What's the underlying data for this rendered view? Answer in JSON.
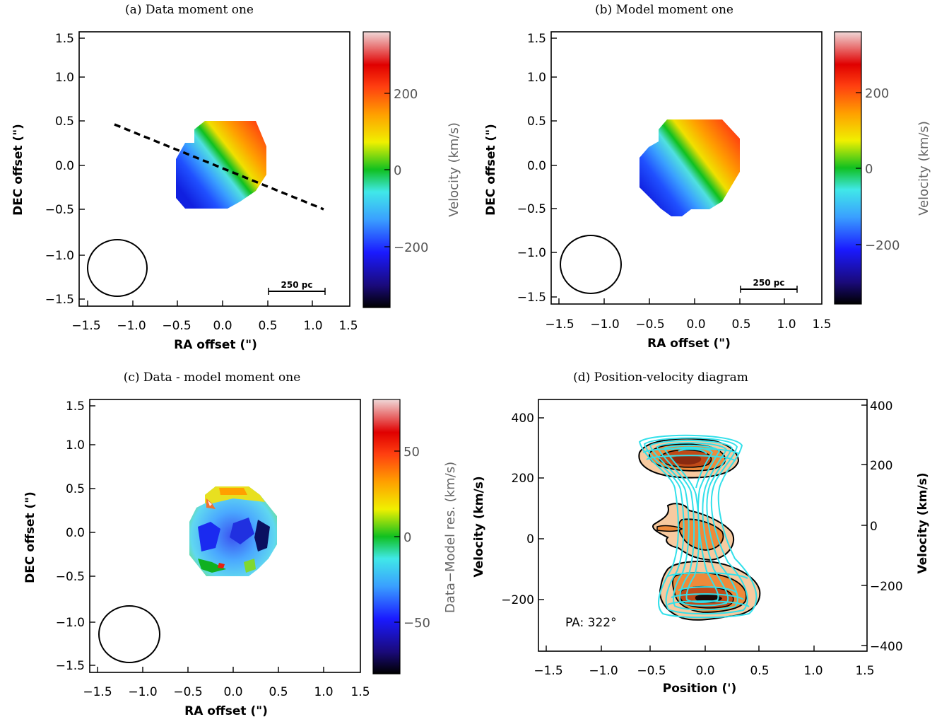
{
  "figure": {
    "panels": [
      {
        "id": "a",
        "title": "(a) Data moment one",
        "xlabel": "RA offset (\")",
        "ylabel": "DEC offset (\")",
        "ticks": [
          "−1.5",
          "−1.0",
          "−0.5",
          "0.0",
          "0.5",
          "1.0",
          "1.5"
        ],
        "colorbar": {
          "label": "Velocity (km/s)",
          "ticks": [
            "200",
            "0",
            "−200"
          ]
        },
        "scalebar": "250 pc"
      },
      {
        "id": "b",
        "title": "(b) Model moment one",
        "xlabel": "RA offset (\")",
        "ylabel": "DEC offset (\")",
        "ticks": [
          "−1.5",
          "−1.0",
          "−0.5",
          "0.0",
          "0.5",
          "1.0",
          "1.5"
        ],
        "colorbar": {
          "label": "Velocity (km/s)",
          "ticks": [
            "200",
            "0",
            "−200"
          ]
        },
        "scalebar": "250 pc"
      },
      {
        "id": "c",
        "title": "(c) Data - model moment one",
        "xlabel": "RA offset (\")",
        "ylabel": "DEC offset (\")",
        "ticks": [
          "−1.5",
          "−1.0",
          "−0.5",
          "0.0",
          "0.5",
          "1.0",
          "1.5"
        ],
        "colorbar": {
          "label": "Data−Model res. (km/s)",
          "ticks": [
            "50",
            "0",
            "−50"
          ]
        }
      },
      {
        "id": "d",
        "title": "(d) Position-velocity diagram",
        "xlabel": "Position (')",
        "ylabel": "Velocity (km/s)",
        "ylabel_right": "Velocity (km/s)",
        "xticks": [
          "−1.5",
          "−1.0",
          "−0.5",
          "0.0",
          "0.5",
          "1.0",
          "1.5"
        ],
        "yticks_left": [
          "400",
          "200",
          "0",
          "−200"
        ],
        "yticks_right": [
          "400",
          "200",
          "0",
          "−200",
          "−400"
        ],
        "annotation": "PA: 322°"
      }
    ],
    "colors": {
      "contour_model": "#33e0ea",
      "contour_data": "#000000",
      "fill_light": "#f7caa0",
      "fill_mid": "#ee8a3a",
      "fill_dark": "#8a2a10"
    }
  },
  "chart_data": [
    {
      "type": "heatmap",
      "title": "(a) Data moment one",
      "xlabel": "RA offset (\")",
      "ylabel": "DEC offset (\")",
      "xlim": [
        -1.5,
        1.5
      ],
      "ylim": [
        -1.5,
        1.5
      ],
      "colorbar_range": [
        -350,
        350
      ],
      "pa_line": [
        [
          -1.2,
          0.45
        ],
        [
          1.15,
          -0.5
        ]
      ],
      "beam_center": [
        -1.15,
        -1.15
      ],
      "scalebar_pc": 250
    },
    {
      "type": "heatmap",
      "title": "(b) Model moment one",
      "xlabel": "RA offset (\")",
      "ylabel": "DEC offset (\")",
      "xlim": [
        -1.5,
        1.5
      ],
      "ylim": [
        -1.5,
        1.5
      ],
      "colorbar_range": [
        -350,
        350
      ],
      "beam_center": [
        -1.15,
        -1.15
      ],
      "scalebar_pc": 250
    },
    {
      "type": "heatmap",
      "title": "(c) Data - model moment one",
      "xlabel": "RA offset (\")",
      "ylabel": "DEC offset (\")",
      "xlim": [
        -1.5,
        1.5
      ],
      "ylim": [
        -1.5,
        1.5
      ],
      "colorbar_range": [
        -80,
        80
      ],
      "beam_center": [
        -1.15,
        -1.15
      ]
    },
    {
      "type": "heatmap",
      "title": "(d) Position-velocity diagram",
      "xlabel": "Position (')",
      "ylabel": "Velocity (km/s)",
      "xlim": [
        -1.55,
        1.45
      ],
      "ylim": [
        -370,
        470
      ],
      "ylim_right": [
        -420,
        420
      ]
    }
  ]
}
